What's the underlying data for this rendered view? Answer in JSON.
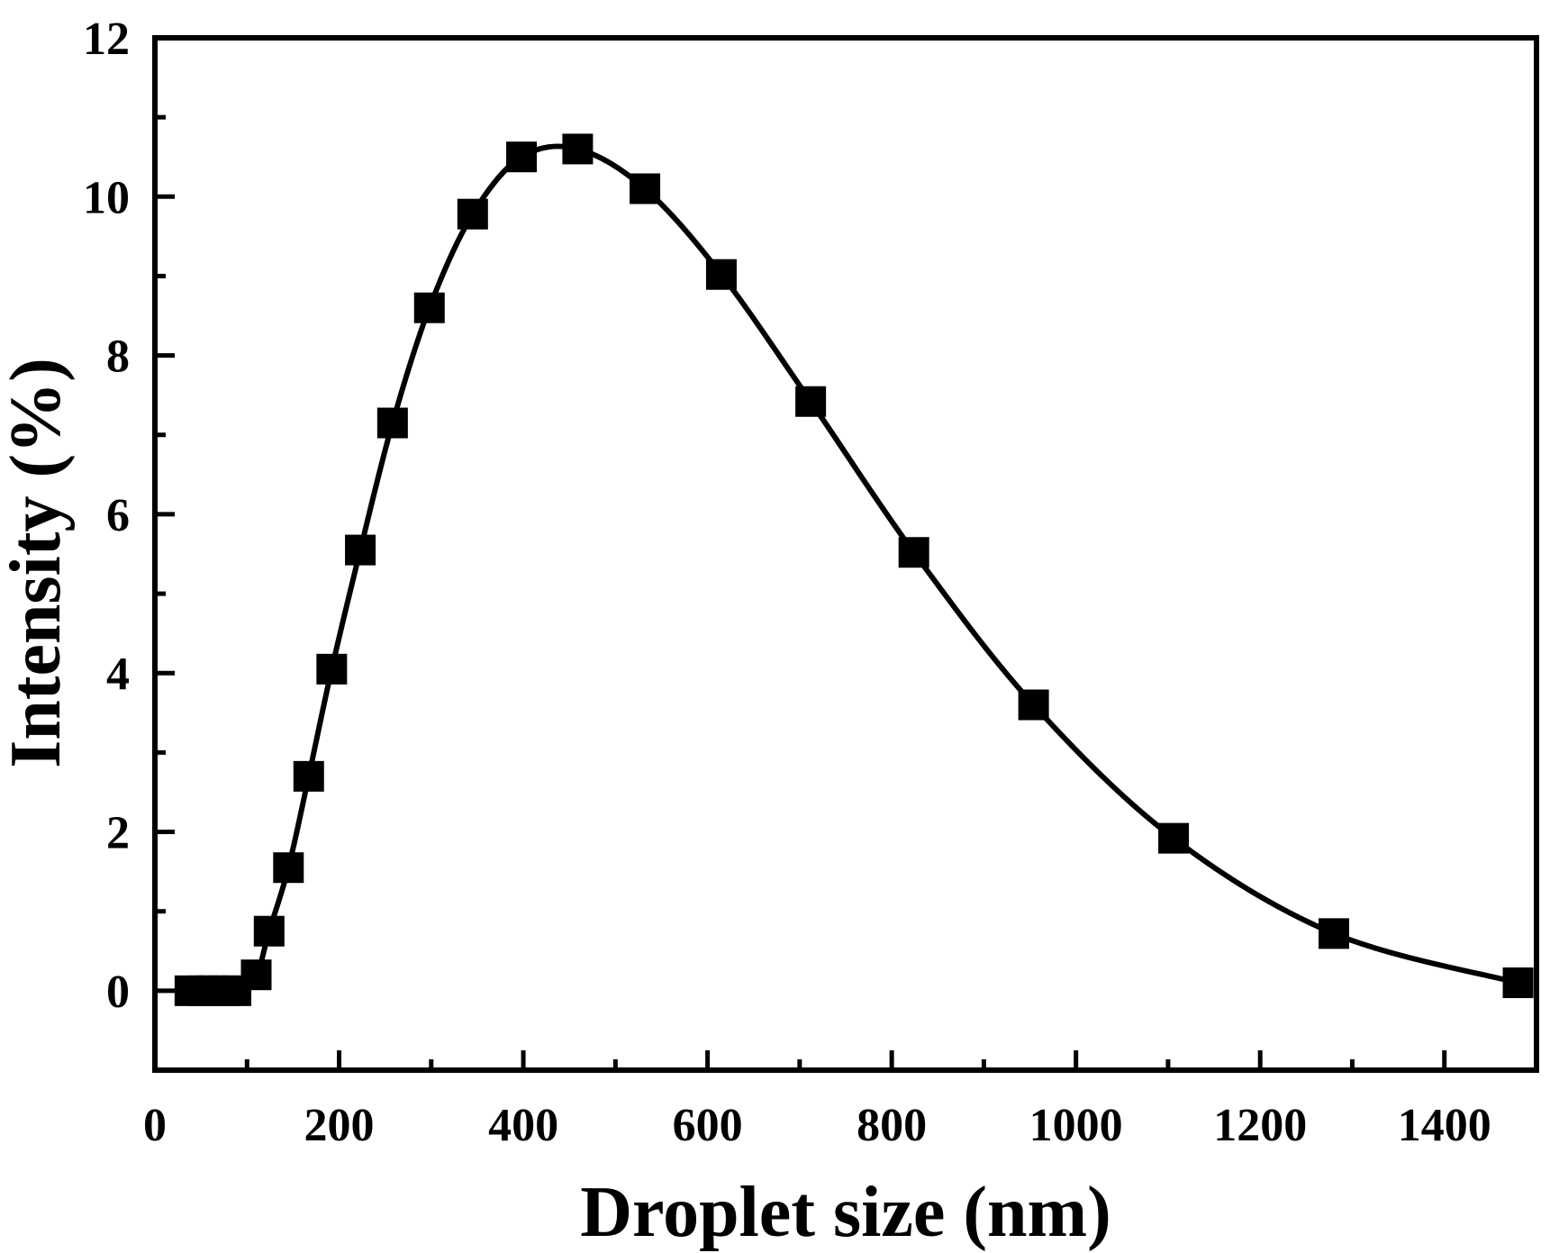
{
  "chart_data": {
    "type": "line",
    "title": "",
    "xlabel": "Droplet size (nm)",
    "ylabel": "Intensity (%)",
    "xlim": [
      0,
      1500
    ],
    "ylim": [
      -1,
      12
    ],
    "x_ticks": [
      0,
      200,
      400,
      600,
      800,
      1000,
      1200,
      1400
    ],
    "x_tick_labels": [
      "0",
      "200",
      "400",
      "600",
      "800",
      "1000",
      "1200",
      "1400"
    ],
    "y_ticks": [
      0,
      2,
      4,
      6,
      8,
      10,
      12
    ],
    "y_tick_labels": [
      "0",
      "2",
      "4",
      "6",
      "8",
      "10",
      "12"
    ],
    "grid": false,
    "legend": "none",
    "marker": "filled-square",
    "series_color": "#000000",
    "series": [
      {
        "x": [
          38,
          52,
          63,
          75,
          88,
          110,
          124,
          145,
          167,
          192,
          223,
          258,
          298,
          345,
          398,
          459,
          532,
          615,
          712,
          824,
          954,
          1106,
          1280,
          1480
        ],
        "y": [
          0,
          0,
          0,
          0,
          0,
          0.2,
          0.75,
          1.55,
          2.7,
          4.05,
          5.55,
          7.15,
          8.6,
          9.78,
          10.5,
          10.6,
          10.1,
          9.02,
          7.42,
          5.52,
          3.6,
          1.92,
          0.72,
          0.1
        ]
      }
    ]
  }
}
